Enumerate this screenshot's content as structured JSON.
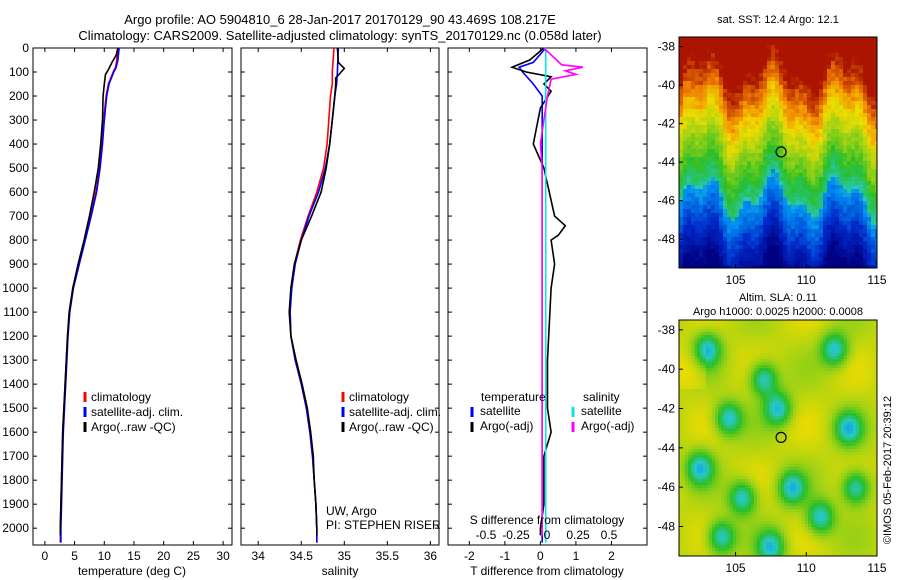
{
  "header": {
    "title_line1": "Argo profile: AO 5904810_6 28-Jan-2017 20170129_90 43.469S 108.217E",
    "title_line2": "Climatology: CARS2009. Satellite-adjusted climatology: synTS_20170129.nc (0.058d later)"
  },
  "colors": {
    "climatology": "#ff0000",
    "satellite": "#0000ff",
    "argo": "#000000",
    "satellite_salinity": "#00e5ee",
    "argo_adj_salinity": "#ff00ff"
  },
  "depth_ticks": [
    0,
    100,
    200,
    300,
    400,
    500,
    600,
    700,
    800,
    900,
    1000,
    1100,
    1200,
    1300,
    1400,
    1500,
    1600,
    1700,
    1800,
    1900,
    2000
  ],
  "chart_data": [
    {
      "id": "temperature",
      "type": "line",
      "xlabel": "temperature (deg C)",
      "ylim": [
        0,
        2070
      ],
      "xlim": [
        -2,
        31.5
      ],
      "xticks": [
        0,
        5,
        10,
        15,
        20,
        25,
        30
      ],
      "legend": [
        "climatology",
        "satellite-adj. clim.",
        "Argo(..raw -QC)"
      ],
      "series": [
        {
          "name": "climatology",
          "color": "#ff0000",
          "depth": [
            0,
            50,
            80,
            100,
            150,
            200,
            300,
            400,
            500,
            600,
            700,
            800,
            900,
            1000,
            1100,
            1200,
            1300,
            1400,
            1500,
            1600,
            1700,
            1800,
            1900,
            2000,
            2060
          ],
          "values": [
            12.2,
            12.1,
            11.9,
            11.5,
            10.7,
            10.3,
            9.9,
            9.6,
            9.2,
            8.6,
            7.7,
            6.7,
            5.7,
            4.7,
            4.1,
            3.8,
            3.6,
            3.4,
            3.2,
            3.0,
            2.9,
            2.8,
            2.7,
            2.6,
            2.6
          ]
        },
        {
          "name": "satellite-adj. clim.",
          "color": "#0000ff",
          "depth": [
            0,
            50,
            80,
            100,
            150,
            200,
            300,
            400,
            500,
            600,
            700,
            800,
            900,
            1000,
            1100,
            1200,
            1300,
            1400,
            1500,
            1600,
            1700,
            1800,
            1900,
            2000,
            2060
          ],
          "values": [
            12.5,
            12.3,
            12.0,
            11.6,
            10.8,
            10.4,
            10.0,
            9.7,
            9.3,
            8.7,
            7.8,
            6.8,
            5.8,
            4.8,
            4.2,
            3.9,
            3.7,
            3.5,
            3.3,
            3.1,
            3.0,
            2.9,
            2.8,
            2.7,
            2.7
          ]
        },
        {
          "name": "Argo(..raw -QC)",
          "color": "#000000",
          "depth": [
            0,
            30,
            60,
            90,
            110,
            150,
            200,
            300,
            400,
            500,
            600,
            700,
            800,
            900,
            1000,
            1100,
            1200,
            1300,
            1400,
            1500,
            1600,
            1700,
            1800,
            1900,
            2000,
            2030
          ],
          "values": [
            12.3,
            12.0,
            11.3,
            10.7,
            10.2,
            10.0,
            9.8,
            9.7,
            9.4,
            9.0,
            8.3,
            7.5,
            6.6,
            5.6,
            4.7,
            4.1,
            3.8,
            3.6,
            3.4,
            3.2,
            3.0,
            2.9,
            2.8,
            2.7,
            2.6,
            2.6
          ]
        }
      ]
    },
    {
      "id": "salinity",
      "type": "line",
      "xlabel": "salinity",
      "ylim": [
        0,
        2070
      ],
      "xlim": [
        33.8,
        36.1
      ],
      "xticks": [
        34,
        34.5,
        35,
        35.5,
        36
      ],
      "legend": [
        "climatology",
        "satellite-adj. clim.",
        "Argo(..raw -QC)"
      ],
      "annotation": [
        "UW, Argo",
        "PI: STEPHEN RISER"
      ],
      "series": [
        {
          "name": "climatology",
          "color": "#ff0000",
          "depth": [
            0,
            100,
            150,
            200,
            300,
            400,
            500,
            600,
            700,
            800,
            900,
            1000,
            1100,
            1200,
            1300,
            1400,
            1500,
            1600,
            1700,
            1800,
            1900,
            2000,
            2060
          ],
          "values": [
            34.88,
            34.86,
            34.86,
            34.84,
            34.82,
            34.8,
            34.76,
            34.68,
            34.58,
            34.49,
            34.42,
            34.38,
            34.37,
            34.38,
            34.43,
            34.5,
            34.56,
            34.6,
            34.63,
            34.65,
            34.67,
            34.68,
            34.68
          ]
        },
        {
          "name": "satellite-adj. clim.",
          "color": "#0000ff",
          "depth": [
            0,
            100,
            150,
            200,
            300,
            400,
            500,
            600,
            700,
            800,
            900,
            1000,
            1100,
            1200,
            1300,
            1400,
            1500,
            1600,
            1700,
            1800,
            1900,
            2000,
            2060
          ],
          "values": [
            34.93,
            34.92,
            34.91,
            34.89,
            34.86,
            34.83,
            34.78,
            34.7,
            34.59,
            34.5,
            34.43,
            34.39,
            34.37,
            34.38,
            34.43,
            34.5,
            34.56,
            34.6,
            34.63,
            34.65,
            34.67,
            34.68,
            34.68
          ]
        },
        {
          "name": "Argo(..raw -QC)",
          "color": "#000000",
          "depth": [
            0,
            60,
            85,
            110,
            125,
            150,
            200,
            300,
            400,
            500,
            600,
            700,
            800,
            900,
            1000,
            1100,
            1200,
            1300,
            1400,
            1500,
            1600,
            1700,
            1800,
            1900,
            2000,
            2030
          ],
          "values": [
            34.92,
            34.93,
            35.0,
            34.94,
            34.9,
            34.9,
            34.89,
            34.86,
            34.83,
            34.79,
            34.73,
            34.62,
            34.5,
            34.42,
            34.38,
            34.36,
            34.38,
            34.44,
            34.51,
            34.57,
            34.61,
            34.64,
            34.65,
            34.67,
            34.68,
            34.68
          ]
        }
      ]
    },
    {
      "id": "difference",
      "type": "line",
      "xlabel": "T difference from climatology",
      "secondary_xlabel": "S difference from climatology",
      "ylim": [
        0,
        2070
      ],
      "xlim": [
        -2.6,
        3.0
      ],
      "xticks": [
        -2,
        -1,
        0,
        1,
        2
      ],
      "secondary_xticks": [
        "-0.5",
        "-0.25",
        "0",
        "0.25",
        "0.5"
      ],
      "legend_headers": [
        "temperature",
        "salinity"
      ],
      "legend": [
        "satellite",
        "Argo(-adj)",
        "satellite",
        "Argo(-adj)"
      ],
      "series": [
        {
          "name": "satellite",
          "color": "#0000ff",
          "depth": [
            0,
            60,
            80,
            100,
            150,
            200,
            300,
            400,
            500,
            700,
            1000,
            1500,
            2000,
            2060
          ],
          "values": [
            0.15,
            -0.2,
            -0.6,
            -0.5,
            -0.2,
            0.05,
            0.05,
            0.05,
            0.05,
            0.05,
            0.05,
            0.05,
            0.05,
            0.05
          ]
        },
        {
          "name": "Argo(-adj)",
          "color": "#000000",
          "depth": [
            0,
            50,
            80,
            100,
            120,
            150,
            180,
            250,
            400,
            500,
            700,
            740,
            780,
            800,
            900,
            1000,
            1300,
            1500,
            1600,
            1700,
            1800,
            1900,
            2000,
            2030
          ],
          "values": [
            0.1,
            -0.3,
            -0.8,
            -0.4,
            0.3,
            0.1,
            0.3,
            0.0,
            -0.2,
            0.1,
            0.4,
            0.7,
            0.5,
            0.3,
            0.4,
            0.3,
            0.2,
            0.2,
            0.3,
            0.1,
            0.1,
            0.1,
            0.0,
            0.0
          ]
        },
        {
          "name": "satellite",
          "color": "#00e5ee",
          "depth": [
            0,
            100,
            200,
            400,
            600,
            1000,
            1500,
            2000,
            2060
          ],
          "values": [
            0.15,
            0.15,
            0.15,
            0.15,
            0.15,
            0.15,
            0.15,
            0.15,
            0.15
          ]
        },
        {
          "name": "Argo(-adj)",
          "color": "#ff00ff",
          "depth": [
            0,
            70,
            80,
            95,
            110,
            130,
            200,
            300,
            400,
            500,
            600,
            700,
            1000,
            1500,
            2000,
            2030
          ],
          "values": [
            0.1,
            0.6,
            1.2,
            0.7,
            1.0,
            0.3,
            0.2,
            0.1,
            0.0,
            0.05,
            0.05,
            0.05,
            0.05,
            0.05,
            0.05,
            0.05
          ]
        }
      ]
    },
    {
      "id": "sst_map",
      "type": "heatmap",
      "title": "sat. SST: 12.4  Argo: 12.1",
      "xticks": [
        105,
        110,
        115
      ],
      "yticks": [
        -38,
        -40,
        -42,
        -44,
        -46,
        -48
      ],
      "xlim": [
        101,
        115
      ],
      "ylim": [
        -49.5,
        -37.5
      ],
      "marker": {
        "lon": 108.217,
        "lat": -43.469
      }
    },
    {
      "id": "sla_map",
      "type": "heatmap",
      "title_line1": "Altim. SLA: 0.11",
      "title_line2": "Argo h1000: 0.0025  h2000: 0.0008",
      "xticks": [
        105,
        110,
        115
      ],
      "yticks": [
        -38,
        -40,
        -42,
        -44,
        -46,
        -48
      ],
      "xlim": [
        101,
        115
      ],
      "ylim": [
        -49.5,
        -37.5
      ],
      "marker": {
        "lon": 108.217,
        "lat": -43.469
      }
    }
  ],
  "footer_stamp": "©IMOS 05-Feb-2017 20:39:12"
}
